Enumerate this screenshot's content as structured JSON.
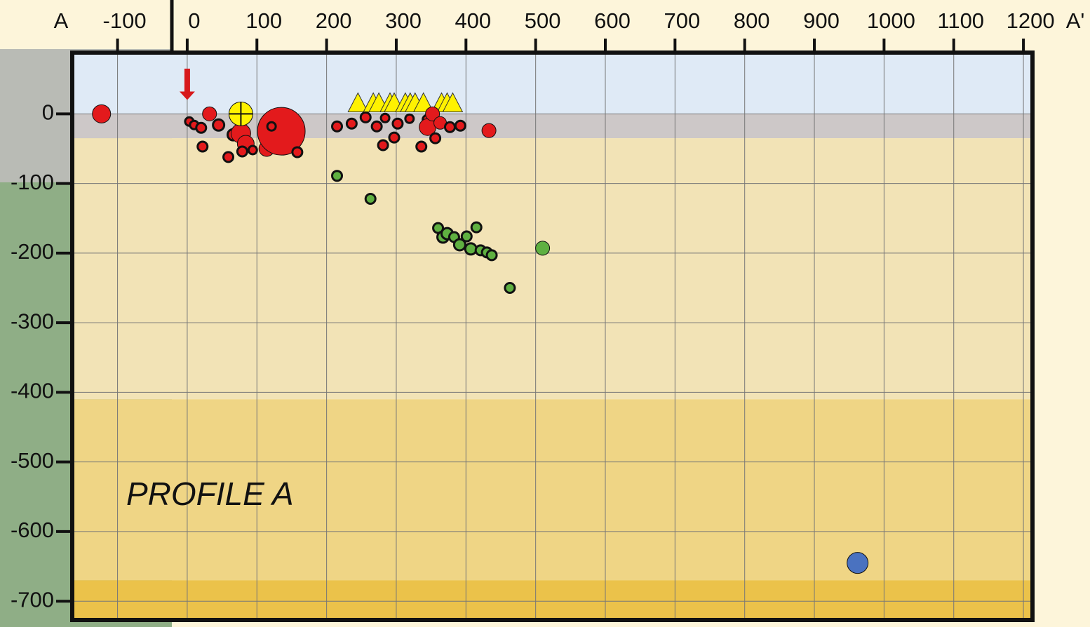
{
  "chart_data": {
    "type": "scatter",
    "title": "PROFILE A",
    "endpoint_labels": [
      "A",
      "A'"
    ],
    "xlim": [
      -165,
      1213
    ],
    "ylim": [
      -727,
      88
    ],
    "xticks": [
      -100,
      0,
      100,
      200,
      300,
      400,
      500,
      600,
      700,
      800,
      900,
      1000,
      1100,
      1200
    ],
    "yticks": [
      0,
      -100,
      -200,
      -300,
      -400,
      -500,
      -600,
      -700
    ],
    "grid": true,
    "bands": [
      {
        "from": 0,
        "to": 88,
        "color": "#dfeaf6"
      },
      {
        "from": -35,
        "to": 0,
        "color": "#cdc8c8"
      },
      {
        "from": -410,
        "to": -35,
        "color": "#f2e3b6"
      },
      {
        "from": -670,
        "to": -410,
        "color": "#efd585"
      },
      {
        "from": -727,
        "to": -670,
        "color": "#ebc24a"
      }
    ],
    "arrow": {
      "x": 0,
      "from": 65,
      "to": 20,
      "color": "#d7191c"
    },
    "series": [
      {
        "marker": "triangle",
        "color": "#fff200",
        "x": [
          245,
          267,
          275,
          291,
          297,
          313,
          320,
          327,
          339,
          365,
          373,
          381
        ],
        "y": [
          15,
          15,
          15,
          15,
          15,
          15,
          15,
          15,
          15,
          15,
          15,
          15
        ]
      },
      {
        "marker": "circle",
        "color": "#e31a1c",
        "x": [
          -123,
          3,
          10,
          20,
          32,
          45,
          22,
          59,
          66,
          77,
          84,
          79,
          94,
          114,
          135,
          121,
          158,
          215,
          236,
          256,
          272,
          281,
          284,
          297,
          302,
          319,
          336,
          344,
          345,
          352,
          356,
          363,
          377,
          392,
          433
        ],
        "y": [
          0,
          -11,
          -16,
          -20,
          0,
          -16,
          -47,
          -62,
          -30,
          -28,
          -43,
          -54,
          -52,
          -50,
          -25,
          -18,
          -55,
          -18,
          -14,
          -5,
          -18,
          -45,
          -6,
          -34,
          -14,
          -7,
          -47,
          -8,
          -19,
          0,
          -35,
          -13,
          -19,
          -17,
          -24
        ],
        "sizes": [
          13,
          6,
          6,
          7,
          10,
          8,
          7,
          7,
          8,
          14,
          12,
          7,
          6,
          11,
          34,
          6,
          7,
          7,
          7,
          7,
          7,
          7,
          6,
          7,
          7,
          6,
          7,
          6,
          12,
          10,
          7,
          9,
          7,
          7,
          10
        ]
      },
      {
        "marker": "crossed-circle",
        "color": "#fff200",
        "x": [
          77
        ],
        "y": [
          0
        ],
        "sizes": [
          17
        ]
      },
      {
        "marker": "circle",
        "color": "#5fb041",
        "x": [
          215,
          263,
          360,
          367,
          373,
          383,
          391,
          401,
          407,
          415,
          421,
          430,
          437,
          510,
          463
        ],
        "y": [
          -89,
          -122,
          -164,
          -177,
          -172,
          -177,
          -188,
          -176,
          -194,
          -163,
          -196,
          -199,
          -203,
          -193,
          -250
        ],
        "sizes": [
          7,
          7,
          7,
          8,
          8,
          7,
          8,
          7,
          8,
          7,
          7,
          7,
          7,
          10,
          7
        ]
      },
      {
        "marker": "circle",
        "color": "#4a72c0",
        "x": [
          962
        ],
        "y": [
          -645
        ],
        "sizes": [
          15
        ]
      }
    ]
  }
}
